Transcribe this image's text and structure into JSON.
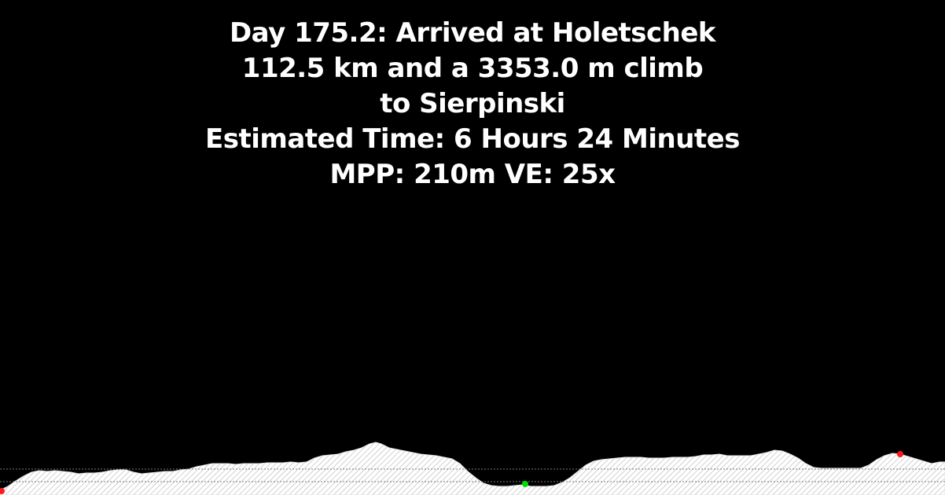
{
  "header": {
    "title": "Day 175.2: Arrived at Holetschek",
    "distance_climb": "112.5 km and a 3353.0 m climb",
    "destination": "to Sierpinski",
    "estimated_time": "Estimated Time: 6 Hours 24 Minutes",
    "scale": "MPP: 210m VE: 25x"
  },
  "colors": {
    "background": "#000000",
    "text": "#ffffff",
    "terrain_fill": "#ffffff",
    "terrain_hatch": "#bfbfbf",
    "marker_current": "#00e000",
    "marker_endpoint": "#ff1a1a"
  },
  "profile": {
    "markers": [
      {
        "name": "start-marker",
        "type": "endpoint"
      },
      {
        "name": "current-position-marker",
        "type": "current"
      },
      {
        "name": "destination-marker",
        "type": "endpoint"
      }
    ]
  }
}
